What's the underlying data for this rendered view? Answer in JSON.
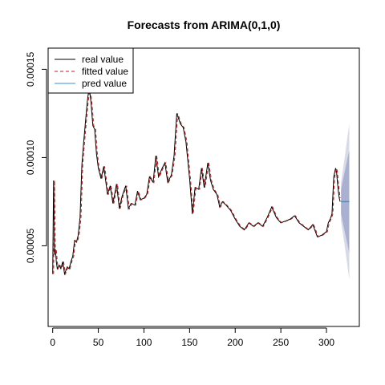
{
  "chart_data": {
    "type": "line",
    "title": "Forecasts from ARIMA(0,1,0)",
    "xlabel": "",
    "ylabel": "",
    "xlim": [
      -5,
      336
    ],
    "ylim": [
      4.3e-06,
      0.000162
    ],
    "x_ticks": [
      0,
      50,
      100,
      150,
      200,
      250,
      300
    ],
    "x_tick_labels": [
      "0",
      "50",
      "100",
      "150",
      "200",
      "250",
      "300"
    ],
    "y_ticks": [
      5e-05,
      0.0001,
      0.00015
    ],
    "y_tick_labels": [
      "0.00005",
      "0.00010",
      "0.00015"
    ],
    "legend": {
      "placement": "top-left",
      "entries": [
        {
          "label": "real value",
          "color": "#000000",
          "style": "solid"
        },
        {
          "label": "fitted value",
          "color": "#b22222",
          "style": "dashed"
        },
        {
          "label": "pred value",
          "color": "#3d8fe0",
          "style": "solid"
        }
      ]
    },
    "series": [
      {
        "name": "real value",
        "color": "#000000",
        "x": [
          0,
          1,
          2,
          3,
          4,
          5,
          7,
          9,
          11,
          13,
          16,
          18,
          20,
          22,
          24,
          26,
          28,
          30,
          32,
          34,
          36,
          38,
          40,
          42,
          44,
          46,
          48,
          50,
          53,
          56,
          60,
          63,
          66,
          70,
          73,
          76,
          80,
          83,
          86,
          90,
          93,
          96,
          100,
          103,
          106,
          110,
          113,
          116,
          120,
          123,
          126,
          130,
          133,
          136,
          140,
          143,
          146,
          150,
          153,
          156,
          160,
          163,
          166,
          170,
          173,
          176,
          180,
          183,
          186,
          190,
          195,
          200,
          205,
          210,
          215,
          220,
          225,
          230,
          235,
          240,
          245,
          250,
          255,
          260,
          265,
          270,
          275,
          280,
          285,
          290,
          295,
          300,
          302,
          304,
          306,
          308,
          310,
          311,
          312,
          313,
          314,
          315
        ],
        "y": [
          3.4e-05,
          8.7e-05,
          4.5e-05,
          4.8e-05,
          4.1e-05,
          3.7e-05,
          3.9e-05,
          3.7e-05,
          4.1e-05,
          3.4e-05,
          3.8e-05,
          3.7e-05,
          4.1e-05,
          4.4e-05,
          5.3e-05,
          5.2e-05,
          5.6e-05,
          6.6e-05,
          9.6e-05,
          0.000109,
          0.000121,
          0.000132,
          0.00014,
          0.000131,
          0.000118,
          0.000116,
          0.000102,
          9.4e-05,
          8.8e-05,
          9.5e-05,
          7.9e-05,
          8.4e-05,
          7.4e-05,
          8.5e-05,
          7.1e-05,
          7.8e-05,
          8.4e-05,
          7.1e-05,
          7.4e-05,
          7.3e-05,
          8.1e-05,
          7.6e-05,
          7.7e-05,
          7.9e-05,
          8.9e-05,
          8.6e-05,
          0.000101,
          8.9e-05,
          9.4e-05,
          9.7e-05,
          8.6e-05,
          9e-05,
          0.000101,
          0.000125,
          0.000119,
          0.000117,
          0.000109,
          8.8e-05,
          6.8e-05,
          8.3e-05,
          8.2e-05,
          9.4e-05,
          8.3e-05,
          9.7e-05,
          8.7e-05,
          8.2e-05,
          7.9e-05,
          7.2e-05,
          7.5e-05,
          7.3e-05,
          7e-05,
          6.5e-05,
          6.1e-05,
          5.9e-05,
          6.3e-05,
          6.1e-05,
          6.3e-05,
          6.1e-05,
          6.6e-05,
          7.2e-05,
          6.6e-05,
          6.3e-05,
          6.4e-05,
          6.5e-05,
          6.7e-05,
          6.3e-05,
          6.1e-05,
          5.9e-05,
          6.2e-05,
          5.5e-05,
          5.6e-05,
          5.8e-05,
          6.3e-05,
          6.5e-05,
          6.8e-05,
          8.9e-05,
          9.4e-05,
          9.2e-05,
          8.6e-05,
          8.1e-05,
          7.7e-05,
          7.5e-05
        ]
      },
      {
        "name": "fitted value",
        "color": "#b22222",
        "x": [
          1,
          2,
          3,
          4,
          5,
          6,
          8,
          10,
          12,
          14,
          17,
          19,
          21,
          23,
          25,
          27,
          29,
          31,
          33,
          35,
          37,
          39,
          41,
          43,
          45,
          47,
          49,
          51,
          54,
          57,
          61,
          64,
          67,
          71,
          74,
          77,
          81,
          84,
          87,
          91,
          94,
          97,
          101,
          104,
          107,
          111,
          114,
          117,
          121,
          124,
          127,
          131,
          134,
          137,
          141,
          144,
          147,
          151,
          154,
          157,
          161,
          164,
          167,
          171,
          174,
          177,
          181,
          184,
          187,
          191,
          196,
          201,
          206,
          211,
          216,
          221,
          226,
          231,
          236,
          241,
          246,
          251,
          256,
          261,
          266,
          271,
          276,
          281,
          286,
          291,
          296,
          301,
          303,
          305,
          307,
          309,
          311,
          312,
          313,
          314,
          315
        ],
        "y": [
          3.4e-05,
          8.7e-05,
          4.5e-05,
          4.8e-05,
          4.1e-05,
          3.7e-05,
          3.9e-05,
          3.7e-05,
          4.1e-05,
          3.4e-05,
          3.8e-05,
          3.7e-05,
          4.1e-05,
          4.4e-05,
          5.3e-05,
          5.2e-05,
          5.6e-05,
          6.6e-05,
          9.6e-05,
          0.000109,
          0.000121,
          0.000132,
          0.00014,
          0.000131,
          0.000118,
          0.000116,
          0.000102,
          9.4e-05,
          8.8e-05,
          9.5e-05,
          7.9e-05,
          8.4e-05,
          7.4e-05,
          8.5e-05,
          7.1e-05,
          7.8e-05,
          8.4e-05,
          7.1e-05,
          7.4e-05,
          7.3e-05,
          8.1e-05,
          7.6e-05,
          7.7e-05,
          7.9e-05,
          8.9e-05,
          8.6e-05,
          0.000101,
          8.9e-05,
          9.4e-05,
          9.7e-05,
          8.6e-05,
          9e-05,
          0.000101,
          0.000125,
          0.000119,
          0.000117,
          0.000109,
          8.8e-05,
          6.8e-05,
          8.3e-05,
          8.2e-05,
          9.4e-05,
          8.3e-05,
          9.7e-05,
          8.7e-05,
          8.2e-05,
          7.9e-05,
          7.2e-05,
          7.5e-05,
          7.3e-05,
          7e-05,
          6.5e-05,
          6.1e-05,
          5.9e-05,
          6.3e-05,
          6.1e-05,
          6.3e-05,
          6.1e-05,
          6.6e-05,
          7.2e-05,
          6.6e-05,
          6.3e-05,
          6.4e-05,
          6.5e-05,
          6.7e-05,
          6.3e-05,
          6.1e-05,
          5.9e-05,
          6.2e-05,
          5.5e-05,
          5.6e-05,
          5.8e-05,
          6.3e-05,
          6.5e-05,
          6.8e-05,
          8.9e-05,
          9.4e-05,
          9.2e-05,
          8.6e-05,
          8.1e-05,
          7.7e-05
        ]
      },
      {
        "name": "pred value",
        "color": "#3d8fe0",
        "x": [
          316,
          325
        ],
        "y": [
          7.5e-05,
          7.5e-05
        ]
      }
    ],
    "forecast_intervals": {
      "x": [
        316,
        318,
        320,
        322,
        325
      ],
      "center": [
        7.5e-05,
        7.5e-05,
        7.5e-05,
        7.5e-05,
        7.5e-05
      ],
      "lo80": [
        6.8e-05,
        6.3e-05,
        5.8e-05,
        5.3e-05,
        4.6e-05
      ],
      "hi80": [
        8.2e-05,
        8.7e-05,
        9.2e-05,
        9.7e-05,
        0.000104
      ],
      "lo95": [
        6.4e-05,
        5.7e-05,
        5e-05,
        4.2e-05,
        3.1e-05
      ],
      "hi95": [
        8.6e-05,
        9.3e-05,
        0.0001,
        0.000108,
        0.000119
      ],
      "color80": "#aab0d0",
      "color95": "#d8dae6"
    }
  }
}
